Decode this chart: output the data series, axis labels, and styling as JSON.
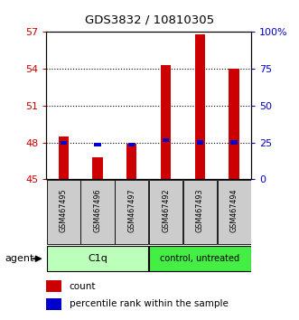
{
  "title": "GDS3832 / 10810305",
  "samples": [
    "GSM467495",
    "GSM467496",
    "GSM467497",
    "GSM467492",
    "GSM467493",
    "GSM467494"
  ],
  "red_values": [
    48.5,
    46.8,
    47.9,
    54.3,
    56.8,
    54.0
  ],
  "blue_values_pct": [
    24.5,
    23.5,
    23.5,
    26.5,
    25.0,
    25.0
  ],
  "ylim_left": [
    45,
    57
  ],
  "ylim_right": [
    0,
    100
  ],
  "yticks_left": [
    45,
    48,
    51,
    54,
    57
  ],
  "yticks_right": [
    0,
    25,
    50,
    75,
    100
  ],
  "ytick_labels_right": [
    "0",
    "25",
    "50",
    "75",
    "100%"
  ],
  "red_color": "#cc0000",
  "blue_color": "#0000cc",
  "bg_plot": "#ffffff",
  "sample_bg": "#cccccc",
  "c1q_color": "#bbffbb",
  "ctrl_color": "#44ee44",
  "agent_label": "agent",
  "legend_count": "count",
  "legend_pct": "percentile rank within the sample",
  "left_tick_color": "#cc0000",
  "right_tick_color": "#0000cc",
  "grid_dotted_at": [
    48,
    51,
    54
  ]
}
